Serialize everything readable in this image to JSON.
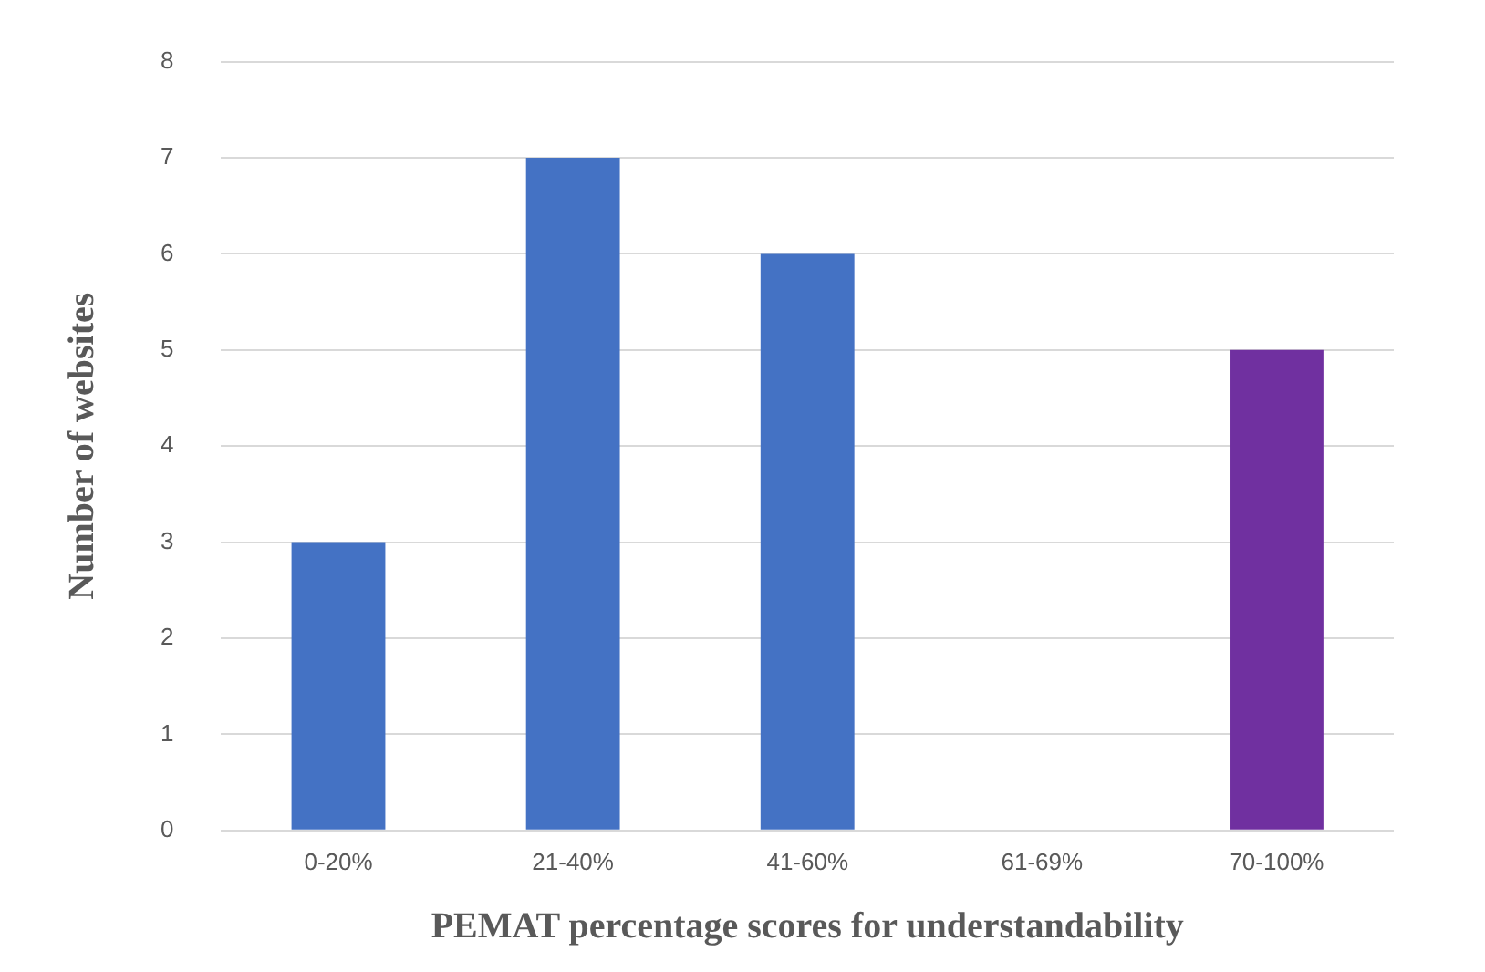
{
  "chart_data": {
    "type": "bar",
    "xlabel": "PEMAT percentage scores for understandability",
    "ylabel": "Number of websites",
    "categories": [
      "0-20%",
      "21-40%",
      "41-60%",
      "61-69%",
      "70-100%"
    ],
    "values": [
      3,
      7,
      6,
      0,
      5
    ],
    "colors": [
      "#4472c4",
      "#4472c4",
      "#4472c4",
      "#4472c4",
      "#7030a0"
    ],
    "ylim": [
      0,
      8
    ],
    "yticks": [
      0,
      1,
      2,
      3,
      4,
      5,
      6,
      7,
      8
    ],
    "grid": "y",
    "legend": false
  }
}
